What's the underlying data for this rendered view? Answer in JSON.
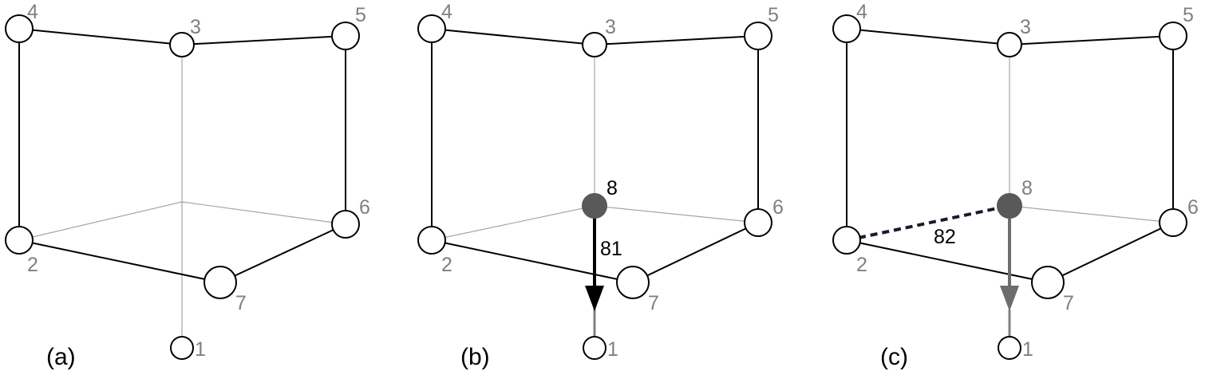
{
  "panels": [
    {
      "label": "(a)",
      "nodes": [
        "1",
        "2",
        "3",
        "4",
        "5",
        "6",
        "7"
      ]
    },
    {
      "label": "(b)",
      "nodes": [
        "1",
        "2",
        "3",
        "4",
        "5",
        "6",
        "7",
        "8"
      ],
      "edge_label": "81"
    },
    {
      "label": "(c)",
      "nodes": [
        "1",
        "2",
        "3",
        "4",
        "5",
        "6",
        "7",
        "8"
      ],
      "edge_label": "82"
    }
  ],
  "colors": {
    "node_fill": "#ffffff",
    "node_stroke": "#000000",
    "new_node_fill": "#595959",
    "label_gray": "#808080",
    "hidden_edge": "#a6a6a6"
  }
}
